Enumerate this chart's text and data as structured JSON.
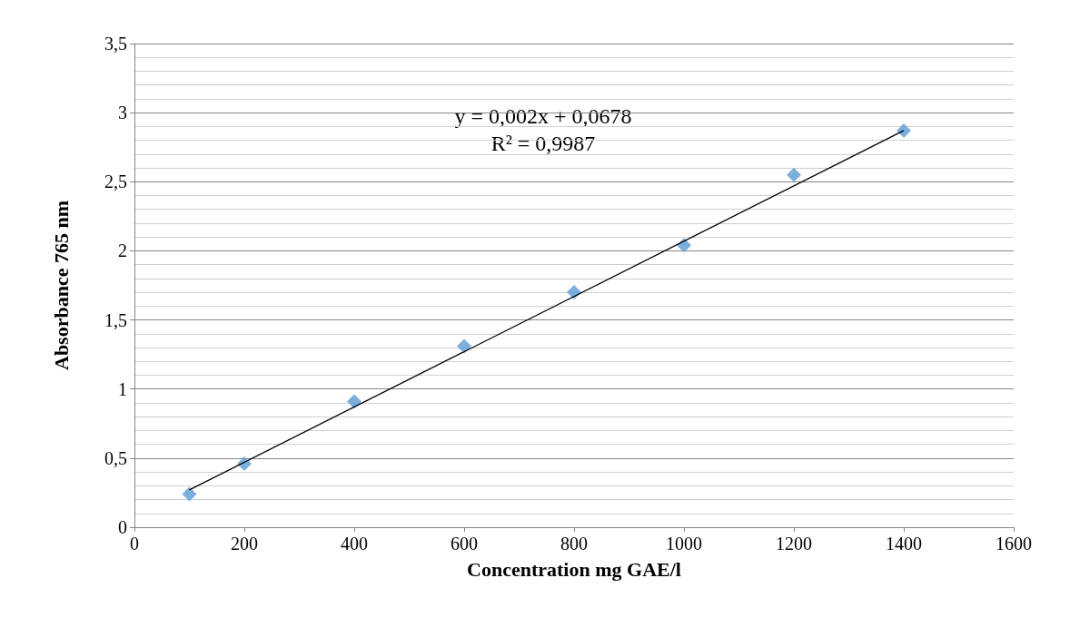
{
  "chart_data": {
    "type": "scatter",
    "xlabel": "Concentration mg GAE/l",
    "ylabel": "Absorbance 765 nm",
    "annotations": [
      "y = 0,002x + 0,0678",
      "R² = 0,9987"
    ],
    "x": [
      100,
      200,
      400,
      600,
      800,
      1000,
      1200,
      1400
    ],
    "series": [
      {
        "color": "#5b9bd5",
        "values": [
          0.24,
          0.46,
          0.91,
          1.31,
          1.7,
          2.04,
          2.55,
          2.87
        ],
        "marker": "diamond"
      },
      {
        "type": "line",
        "color": "#000000",
        "x": [
          100,
          1400
        ],
        "values": [
          0.27,
          2.87
        ],
        "marker": "none",
        "line_style": "solid"
      }
    ],
    "xlim": [
      0,
      1600
    ],
    "xticks": [
      0,
      200,
      400,
      600,
      800,
      1000,
      1200,
      1400,
      1600
    ],
    "ylim": [
      0,
      3.5
    ],
    "yticks": [
      0,
      {
        "value": 0.5,
        "label": "0,5"
      },
      1,
      {
        "value": 1.5,
        "label": "1,5"
      },
      2,
      {
        "value": 2.5,
        "label": "2,5"
      },
      3,
      {
        "value": 3.5,
        "label": "3,5"
      }
    ],
    "grid": "y"
  }
}
